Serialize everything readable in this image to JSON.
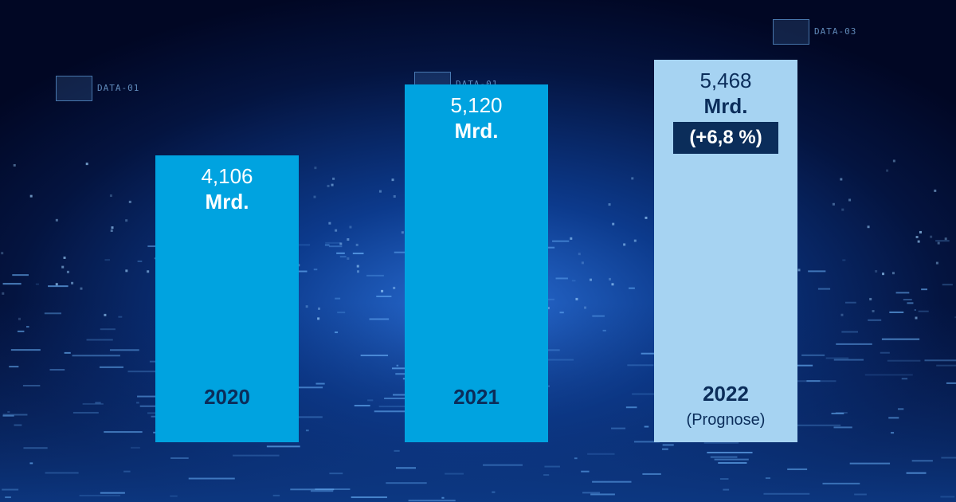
{
  "colors": {
    "bar_actual": "#00a3e0",
    "bar_forecast": "#a6d3f2",
    "text_on_actual": "#ffffff",
    "label_on_actual": "#0b2d5a",
    "text_on_forecast": "#0b2d5a",
    "badge_bg": "#0b2d5a",
    "badge_text": "#ffffff"
  },
  "decor": {
    "panels": [
      "DATA-01",
      "DATA-01",
      "DATA-03"
    ]
  },
  "chart_data": {
    "type": "bar",
    "categories": [
      "2020",
      "2021",
      "2022"
    ],
    "values": [
      4.106,
      5.12,
      5.468
    ],
    "value_labels": [
      [
        "4,106",
        "Mrd."
      ],
      [
        "5,120",
        "Mrd."
      ],
      [
        "5,468",
        "Mrd."
      ]
    ],
    "notes": [
      "",
      "",
      "(Prognose)"
    ],
    "forecast": [
      false,
      false,
      true
    ],
    "change_labels": [
      "",
      "",
      "(+6,8 %)"
    ],
    "grid": false,
    "legend": "none"
  }
}
